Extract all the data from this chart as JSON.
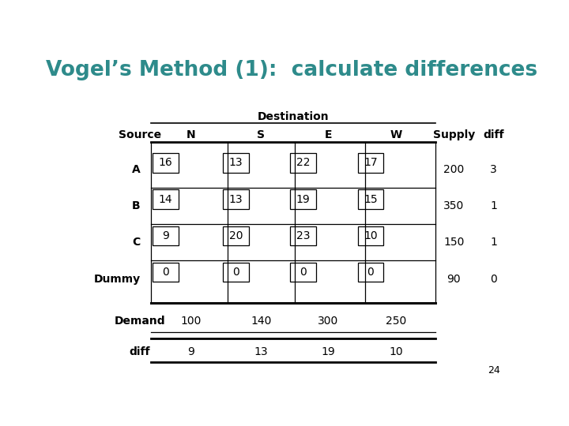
{
  "title": "Vogel’s Method (1):  calculate differences",
  "title_color": "#2E8B8B",
  "background_color": "#FFFFFF",
  "rows": [
    "A",
    "B",
    "C",
    "Dummy"
  ],
  "cols": [
    "N",
    "S",
    "E",
    "W"
  ],
  "cell_values": [
    [
      16,
      13,
      22,
      17
    ],
    [
      14,
      13,
      19,
      15
    ],
    [
      9,
      20,
      23,
      10
    ],
    [
      0,
      0,
      0,
      0
    ]
  ],
  "supply": [
    200,
    350,
    150,
    90
  ],
  "supply_diff": [
    3,
    1,
    1,
    0
  ],
  "demand": [
    100,
    140,
    300,
    250
  ],
  "demand_diff": [
    9,
    13,
    19,
    10
  ],
  "page_number": "24",
  "title_fontsize": 19,
  "body_fontsize": 10,
  "header_fontsize": 10
}
